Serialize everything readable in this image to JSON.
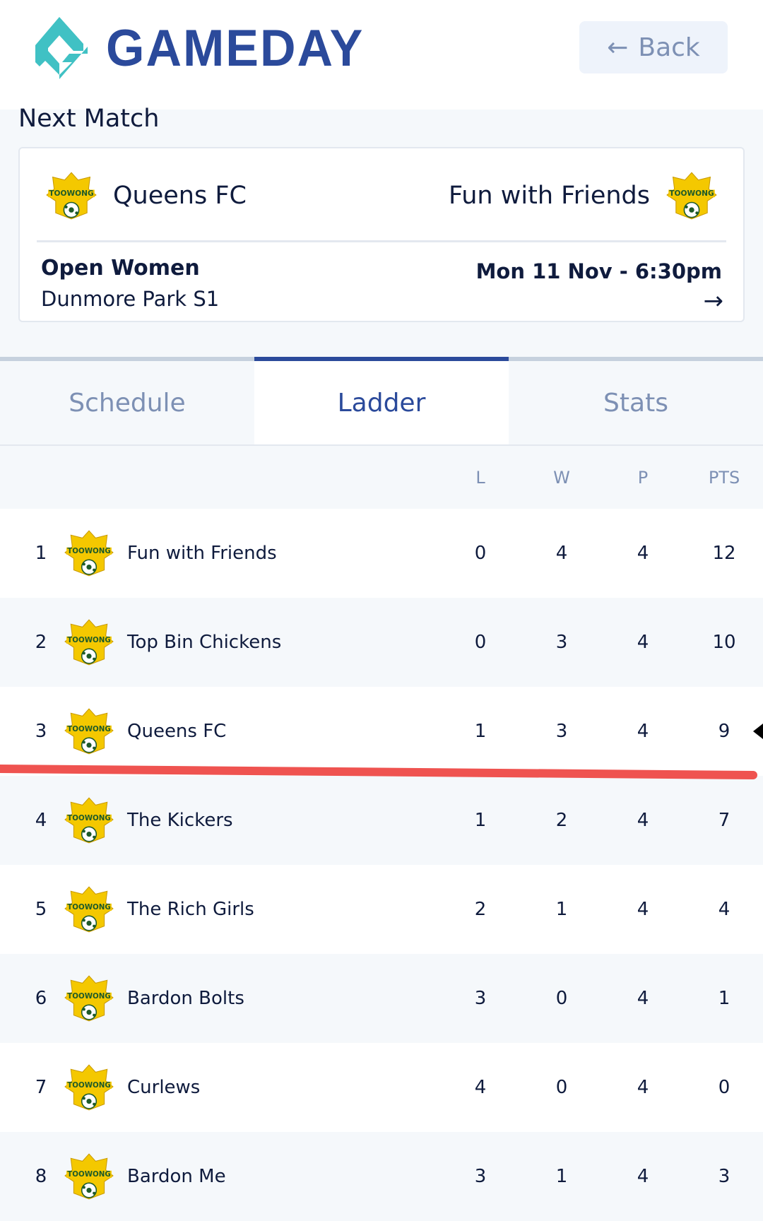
{
  "header": {
    "brand": "GAMEDAY",
    "back_label": "Back"
  },
  "next_match": {
    "title": "Next Match",
    "home_team": "Queens FC",
    "away_team": "Fun with Friends",
    "competition": "Open Women",
    "venue": "Dunmore Park S1",
    "datetime": "Mon 11 Nov - 6:30pm"
  },
  "tabs": [
    {
      "label": "Schedule"
    },
    {
      "label": "Ladder",
      "active": true
    },
    {
      "label": "Stats"
    }
  ],
  "ladder": {
    "columns": [
      "L",
      "W",
      "P",
      "PTS"
    ],
    "rows": [
      {
        "pos": "1",
        "team": "Fun with Friends",
        "L": "0",
        "W": "4",
        "P": "4",
        "PTS": "12"
      },
      {
        "pos": "2",
        "team": "Top Bin Chickens",
        "L": "0",
        "W": "3",
        "P": "4",
        "PTS": "10"
      },
      {
        "pos": "3",
        "team": "Queens FC",
        "L": "1",
        "W": "3",
        "P": "4",
        "PTS": "9"
      },
      {
        "pos": "4",
        "team": "The Kickers",
        "L": "1",
        "W": "2",
        "P": "4",
        "PTS": "7"
      },
      {
        "pos": "5",
        "team": "The Rich Girls",
        "L": "2",
        "W": "1",
        "P": "4",
        "PTS": "4"
      },
      {
        "pos": "6",
        "team": "Bardon Bolts",
        "L": "3",
        "W": "0",
        "P": "4",
        "PTS": "1"
      },
      {
        "pos": "7",
        "team": "Curlews",
        "L": "4",
        "W": "0",
        "P": "4",
        "PTS": "0"
      },
      {
        "pos": "8",
        "team": "Bardon Me",
        "L": "3",
        "W": "1",
        "P": "4",
        "PTS": "3"
      }
    ]
  },
  "colors": {
    "brand": "#2b4a9b",
    "logo_teal": "#40c1c4",
    "annotation_red": "#ef5350"
  },
  "icons": {
    "badge": "toowong-fc-crest",
    "back": "arrow-left-icon",
    "match": "arrow-right-icon"
  }
}
